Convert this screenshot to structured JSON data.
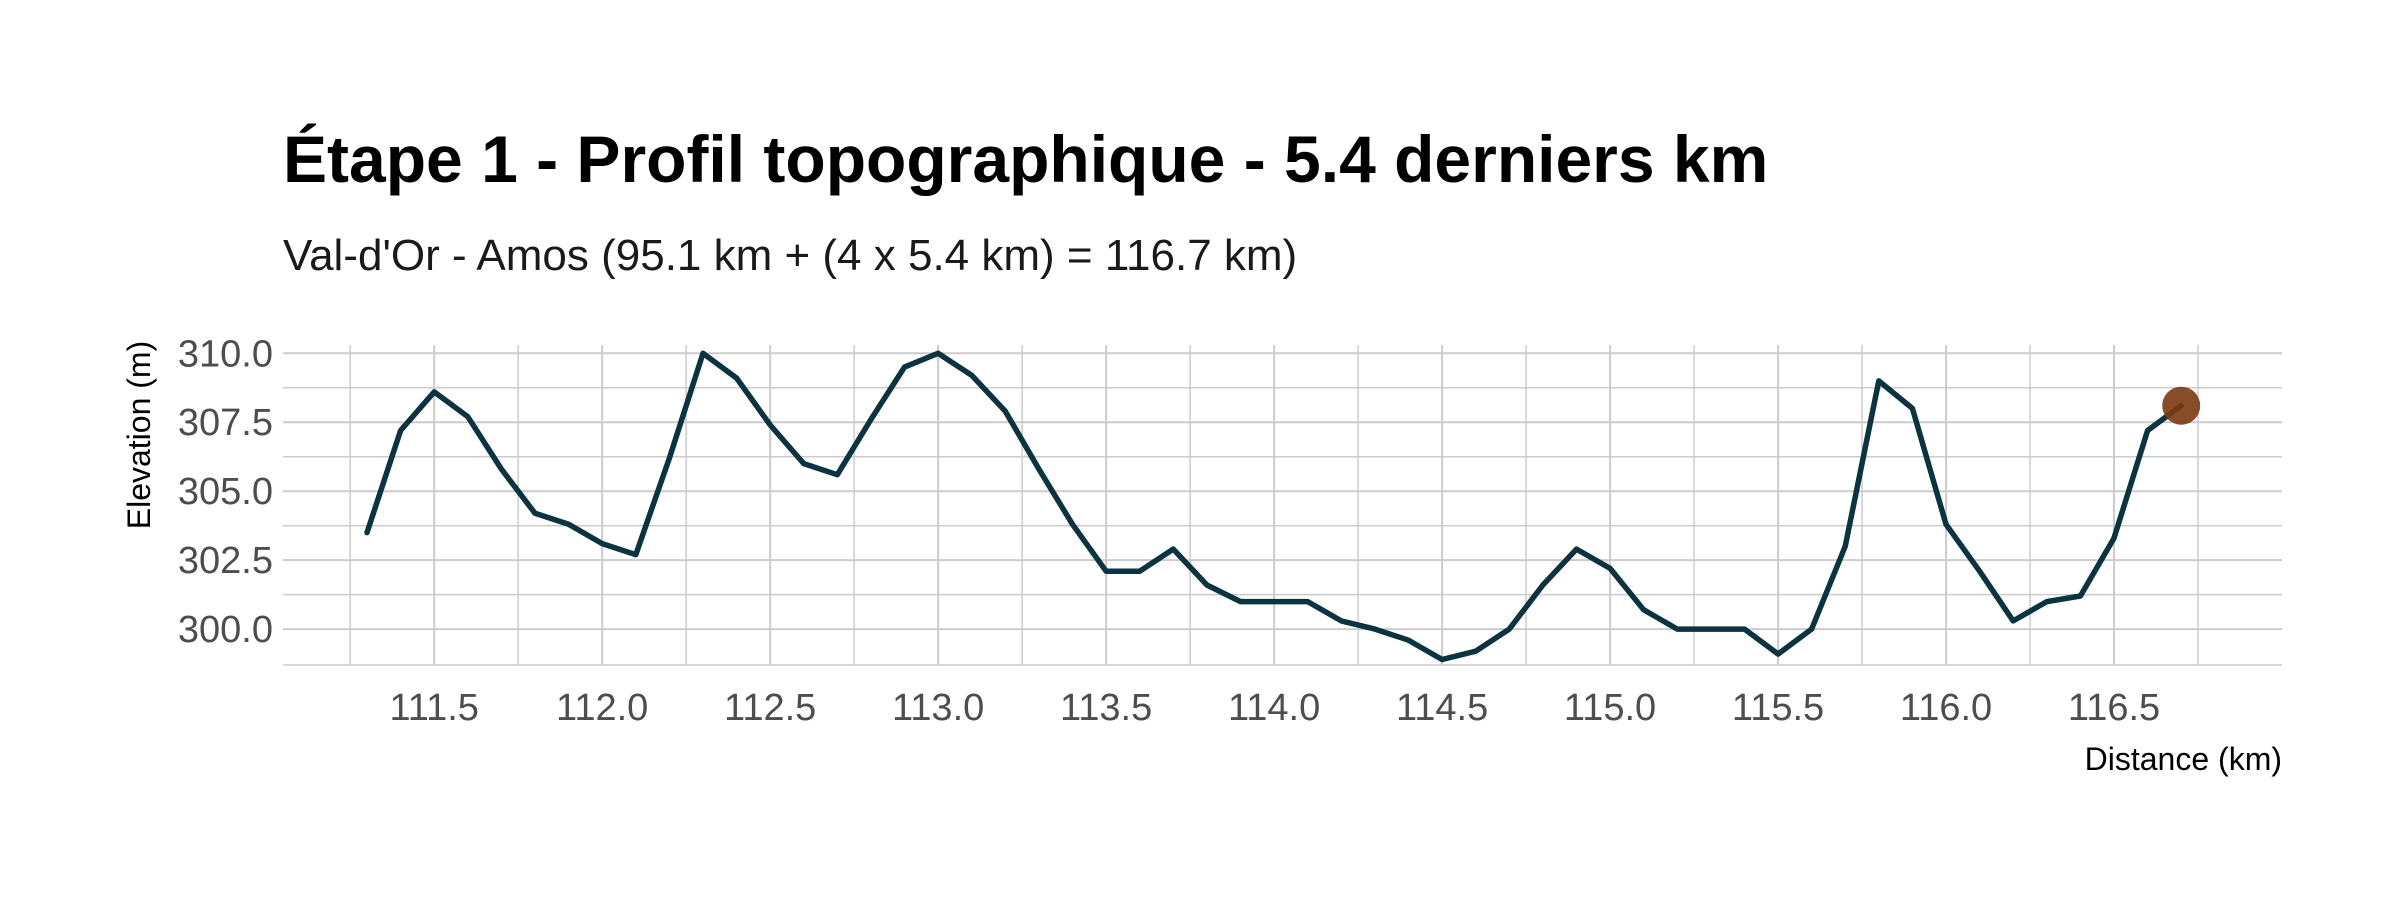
{
  "chart_data": {
    "type": "line",
    "title": "Étape 1 - Profil topographique - 5.4 derniers km",
    "subtitle": "Val-d'Or - Amos (95.1 km + (4 x 5.4 km) = 116.7 km)",
    "xlabel": "Distance (km)",
    "ylabel": "Elevation (m)",
    "xlim": [
      111.05,
      117.0
    ],
    "ylim": [
      298.7,
      310.3
    ],
    "x_ticks": [
      111.5,
      112.0,
      112.5,
      113.0,
      113.5,
      114.0,
      114.5,
      115.0,
      115.5,
      116.0,
      116.5
    ],
    "x_tick_labels": [
      "111.5",
      "112.0",
      "112.5",
      "113.0",
      "113.5",
      "114.0",
      "114.5",
      "115.0",
      "115.5",
      "116.0",
      "116.5"
    ],
    "y_ticks": [
      300.0,
      302.5,
      305.0,
      307.5,
      310.0
    ],
    "y_tick_labels": [
      "300.0",
      "302.5",
      "305.0",
      "307.5",
      "310.0"
    ],
    "grid": true,
    "line_color": "#0b3340",
    "marker_color": "#7a3a14",
    "series": [
      {
        "x": [
          111.3,
          111.4,
          111.5,
          111.6,
          111.7,
          111.8,
          111.9,
          112.0,
          112.1,
          112.2,
          112.3,
          112.4,
          112.5,
          112.6,
          112.7,
          112.8,
          112.9,
          113.0,
          113.1,
          113.2,
          113.3,
          113.4,
          113.5,
          113.6,
          113.7,
          113.8,
          113.9,
          114.0,
          114.1,
          114.2,
          114.3,
          114.4,
          114.5,
          114.6,
          114.7,
          114.8,
          114.9,
          115.0,
          115.1,
          115.2,
          115.3,
          115.4,
          115.5,
          115.6,
          115.7,
          115.8,
          115.9,
          116.0,
          116.1,
          116.2,
          116.3,
          116.4,
          116.5,
          116.6,
          116.7
        ],
        "y": [
          303.5,
          307.2,
          308.6,
          307.7,
          305.8,
          304.2,
          303.8,
          303.1,
          302.7,
          306.2,
          310.0,
          309.1,
          307.4,
          306.0,
          305.6,
          307.6,
          309.5,
          310.0,
          309.2,
          307.9,
          305.8,
          303.8,
          302.1,
          302.1,
          302.9,
          301.6,
          301.0,
          301.0,
          301.0,
          300.3,
          300.0,
          299.6,
          298.9,
          299.2,
          300.0,
          301.6,
          302.9,
          302.2,
          300.7,
          300.0,
          300.0,
          300.0,
          299.1,
          300.0,
          303.0,
          309.0,
          308.0,
          303.8,
          302.1,
          300.3,
          301.0,
          301.2,
          303.3,
          307.2,
          308.1
        ]
      }
    ],
    "current_point": {
      "x": 116.7,
      "y": 308.1
    }
  }
}
